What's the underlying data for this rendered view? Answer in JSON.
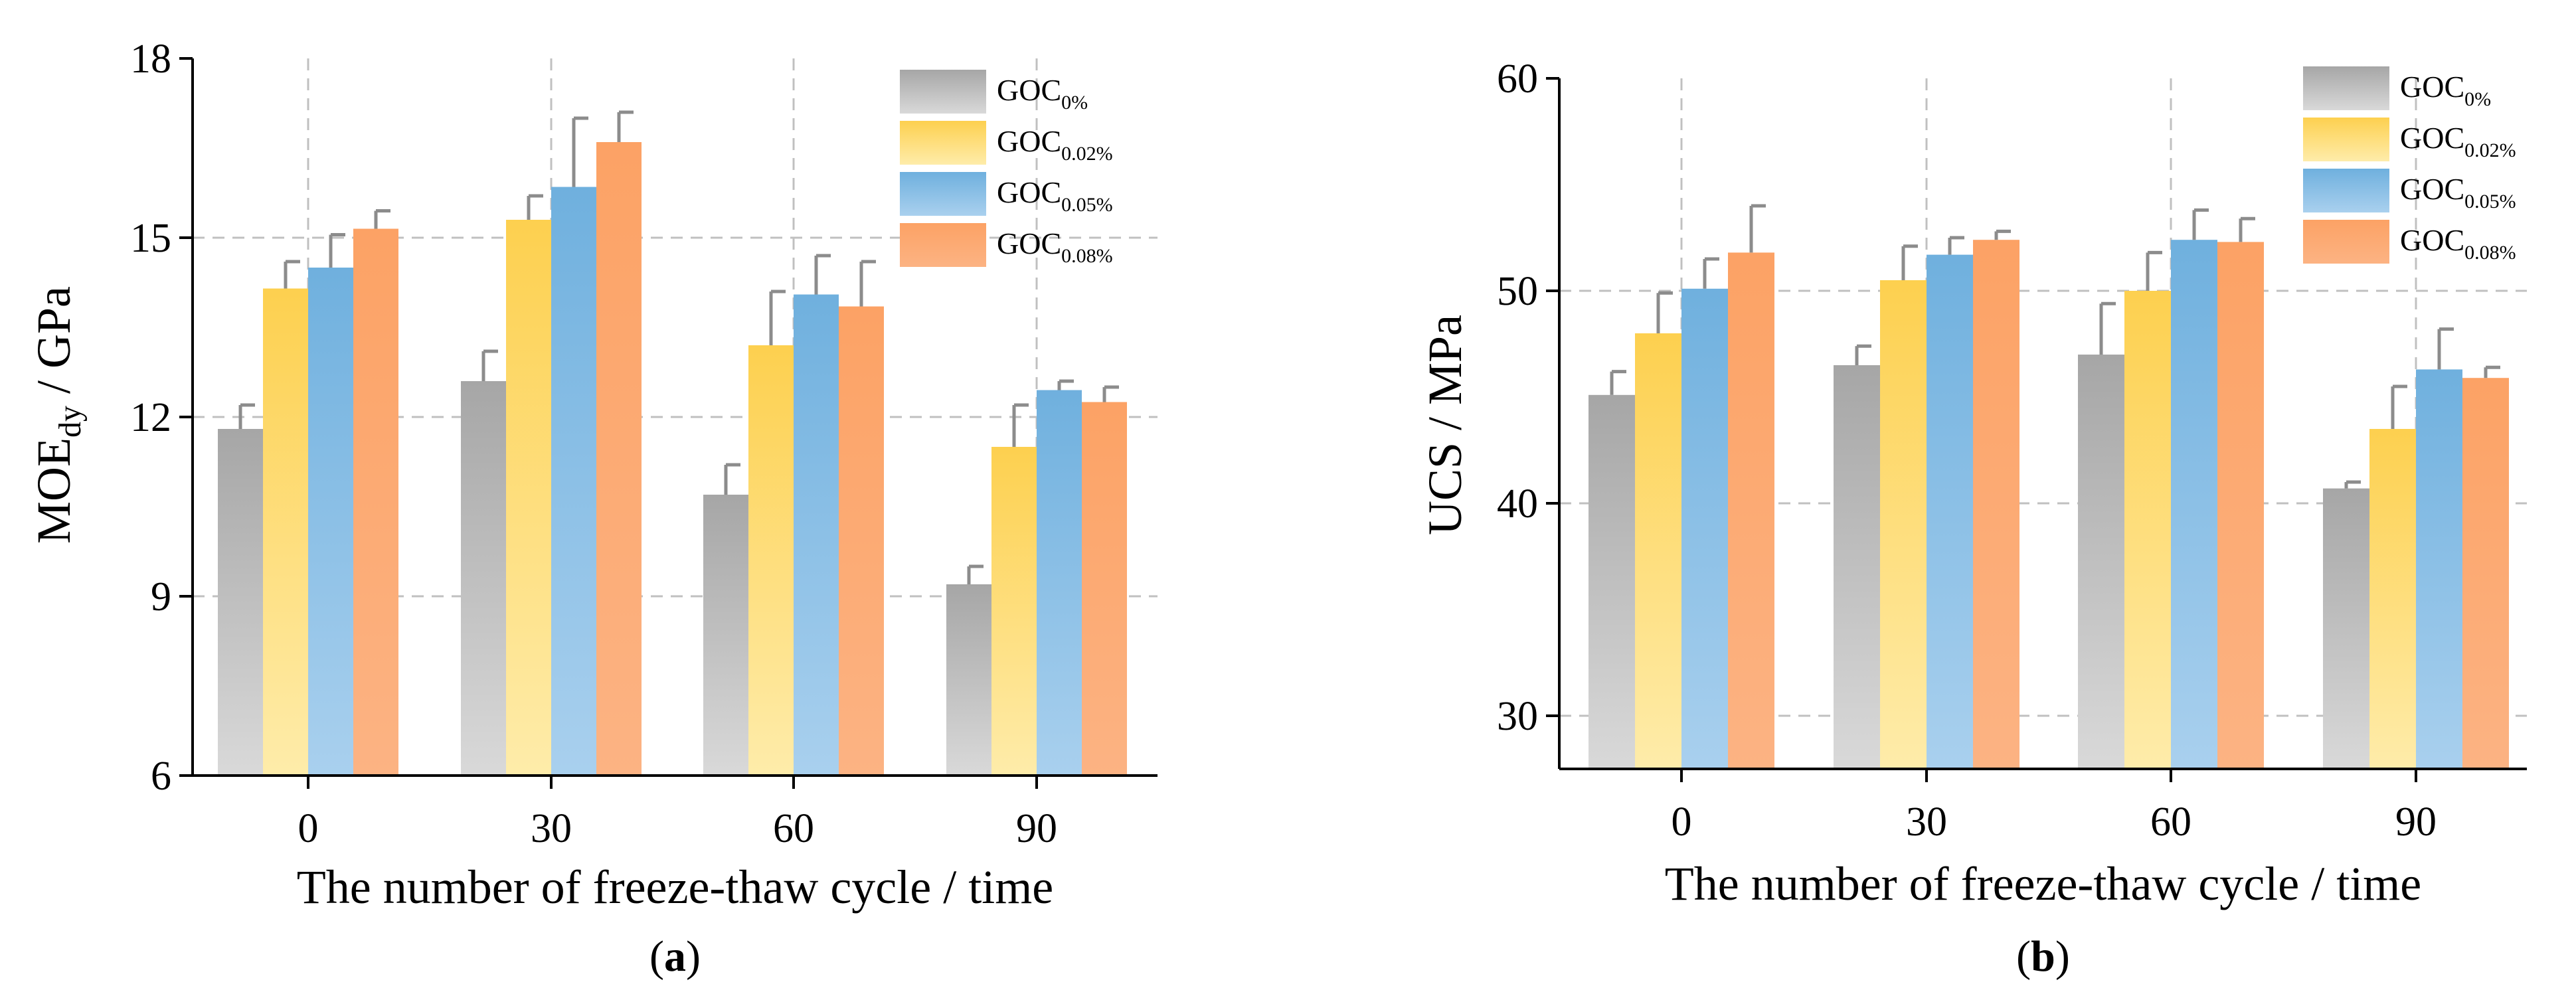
{
  "colors": {
    "GOC0": [
      "#a6a6a6",
      "#d9d9d9"
    ],
    "GOC002": [
      "#fdd04f",
      "#feecaa"
    ],
    "GOC005": [
      "#6fb0de",
      "#a9d0ee"
    ],
    "GOC008": [
      "#fca265",
      "#fcb383"
    ],
    "error_bar": "#8c8c8c",
    "grid": "#c0c0c0",
    "axis": "#000000"
  },
  "chart_data": [
    {
      "type": "bar",
      "panel": "(a)",
      "panel_letter": "a",
      "title": "",
      "xlabel": "The number of freeze-thaw cycle / time",
      "ylabel_main": "MOE",
      "ylabel_sub": "dy",
      "ylabel_unit": " / GPa",
      "ylim": [
        6,
        18
      ],
      "yticks": [
        "6",
        "9",
        "12",
        "15",
        "18"
      ],
      "categories": [
        "0",
        "30",
        "60",
        "90"
      ],
      "legend_position": "top-right",
      "grid": true,
      "series": [
        {
          "name_main": "GOC",
          "name_sub": "0%",
          "color_key": "GOC0",
          "values": [
            11.8,
            12.6,
            10.7,
            9.2
          ],
          "errors": [
            0.4,
            0.5,
            0.5,
            0.3
          ]
        },
        {
          "name_main": "GOC",
          "name_sub": "0.02%",
          "color_key": "GOC002",
          "values": [
            14.15,
            15.3,
            13.2,
            11.5
          ],
          "errors": [
            0.45,
            0.4,
            0.9,
            0.7
          ]
        },
        {
          "name_main": "GOC",
          "name_sub": "0.05%",
          "color_key": "GOC005",
          "values": [
            14.5,
            15.85,
            14.05,
            12.45
          ],
          "errors": [
            0.55,
            1.15,
            0.65,
            0.15
          ]
        },
        {
          "name_main": "GOC",
          "name_sub": "0.08%",
          "color_key": "GOC008",
          "values": [
            15.15,
            16.6,
            13.85,
            12.25
          ],
          "errors": [
            0.3,
            0.5,
            0.75,
            0.25
          ]
        }
      ]
    },
    {
      "type": "bar",
      "panel": "(b)",
      "panel_letter": "b",
      "title": "",
      "xlabel": "The number of freeze-thaw cycle / time",
      "ylabel_main": "UCS / MPa",
      "ylabel_sub": "",
      "ylabel_unit": "",
      "ylim": [
        27.5,
        60
      ],
      "yticks": [
        "30",
        "40",
        "50",
        "60"
      ],
      "ytick_values": [
        30,
        40,
        50,
        60
      ],
      "categories": [
        "0",
        "30",
        "60",
        "90"
      ],
      "legend_position": "top-right",
      "grid": true,
      "series": [
        {
          "name_main": "GOC",
          "name_sub": "0%",
          "color_key": "GOC0",
          "values": [
            45.1,
            46.5,
            47.0,
            40.7
          ],
          "errors": [
            1.1,
            0.9,
            2.4,
            0.3
          ]
        },
        {
          "name_main": "GOC",
          "name_sub": "0.02%",
          "color_key": "GOC002",
          "values": [
            48.0,
            50.5,
            50.0,
            43.5
          ],
          "errors": [
            1.9,
            1.6,
            1.8,
            2.0
          ]
        },
        {
          "name_main": "GOC",
          "name_sub": "0.05%",
          "color_key": "GOC005",
          "values": [
            50.1,
            51.7,
            52.4,
            46.3
          ],
          "errors": [
            1.4,
            0.8,
            1.4,
            1.9
          ]
        },
        {
          "name_main": "GOC",
          "name_sub": "0.08%",
          "color_key": "GOC008",
          "values": [
            51.8,
            52.4,
            52.3,
            45.9
          ],
          "errors": [
            2.2,
            0.4,
            1.1,
            0.5
          ]
        }
      ]
    }
  ]
}
